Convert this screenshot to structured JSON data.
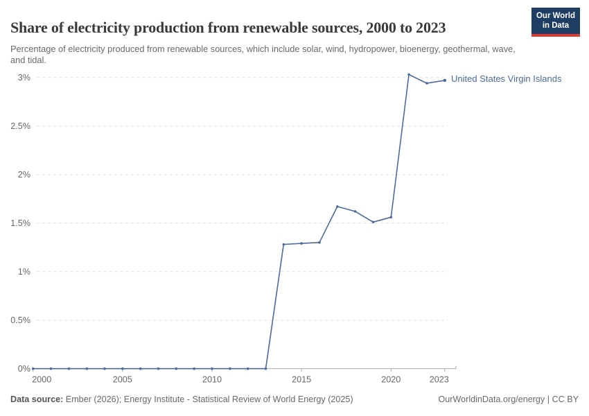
{
  "header": {
    "title": "Share of electricity production from renewable sources, 2000 to 2023",
    "subtitle": "Percentage of electricity produced from renewable sources, which include solar, wind, hydropower, bioenergy, geothermal, wave, and tidal."
  },
  "logo": {
    "line1": "Our World",
    "line2": "in Data",
    "bg_color": "#1d3d63",
    "accent_color": "#dc3c32"
  },
  "legend": {
    "label": "United States Virgin Islands",
    "color": "#4c6a9c"
  },
  "chart_data": {
    "type": "line",
    "title": "Share of electricity production from renewable sources, 2000 to 2023",
    "xlabel": "",
    "ylabel": "",
    "xlim": [
      2000,
      2023
    ],
    "ylim": [
      0,
      3
    ],
    "grid": "horizontal-dashed",
    "legend_position": "right-of-line-end",
    "grid_color": "#e0e0e0",
    "axis_color": "#a8a8a8",
    "series": [
      {
        "name": "United States Virgin Islands",
        "color": "#4c6a9c",
        "x": [
          2000,
          2001,
          2002,
          2003,
          2004,
          2005,
          2006,
          2007,
          2008,
          2009,
          2010,
          2011,
          2012,
          2013,
          2014,
          2015,
          2016,
          2017,
          2018,
          2019,
          2020,
          2021,
          2022,
          2023
        ],
        "values": [
          0,
          0,
          0,
          0,
          0,
          0,
          0,
          0,
          0,
          0,
          0,
          0,
          0,
          0,
          1.28,
          1.29,
          1.3,
          1.67,
          1.62,
          1.51,
          1.56,
          3.03,
          2.94,
          2.97
        ]
      }
    ],
    "y_ticks": [
      {
        "value": 0,
        "label": "0%"
      },
      {
        "value": 0.5,
        "label": "0.5%"
      },
      {
        "value": 1,
        "label": "1%"
      },
      {
        "value": 1.5,
        "label": "1.5%"
      },
      {
        "value": 2,
        "label": "2%"
      },
      {
        "value": 2.5,
        "label": "2.5%"
      },
      {
        "value": 3,
        "label": "3%"
      }
    ],
    "x_ticks": [
      {
        "year": 2000,
        "label": "2000",
        "align": "start"
      },
      {
        "year": 2005,
        "label": "2005",
        "align": "middle"
      },
      {
        "year": 2010,
        "label": "2010",
        "align": "middle"
      },
      {
        "year": 2015,
        "label": "2015",
        "align": "middle"
      },
      {
        "year": 2020,
        "label": "2020",
        "align": "middle"
      },
      {
        "year": 2023,
        "label": "2023",
        "align": "end"
      }
    ]
  },
  "footer": {
    "source_label": "Data source:",
    "source_text": " Ember (2026); Energy Institute - Statistical Review of World Energy (2025)",
    "right_text": "OurWorldinData.org/energy | CC BY"
  }
}
